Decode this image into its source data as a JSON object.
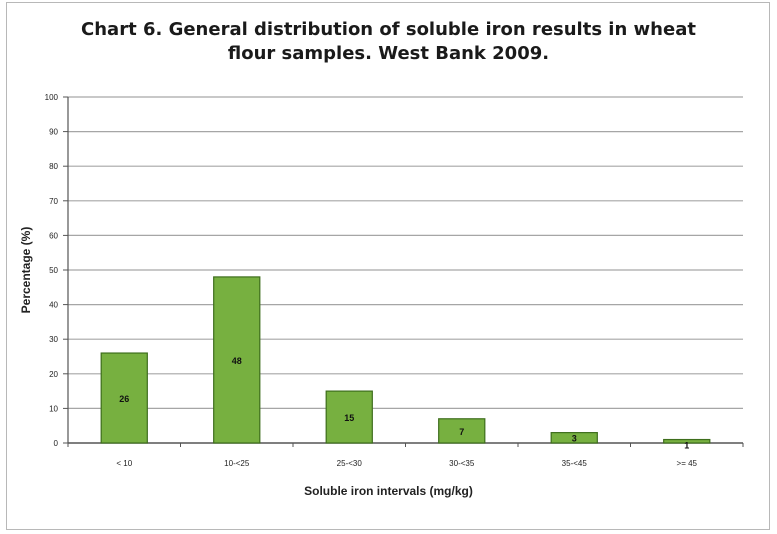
{
  "chart_data": {
    "type": "bar",
    "title_line1": "Chart 6. General distribution of soluble iron results in wheat",
    "title_line2": "flour samples.  West Bank 2009.",
    "xlabel": "Soluble iron intervals (mg/kg)",
    "ylabel": "Percentage (%)",
    "ylim": [
      0,
      100
    ],
    "yticks": [
      0,
      10,
      20,
      30,
      40,
      50,
      60,
      70,
      80,
      90,
      100
    ],
    "categories": [
      "< 10",
      "10-<25",
      "25-<30",
      "30-<35",
      "35-<45",
      ">= 45"
    ],
    "values": [
      26,
      48,
      15,
      7,
      3,
      1
    ],
    "data_labels": [
      "26",
      "48",
      "15",
      "7",
      "3",
      "1"
    ],
    "bar_color": "#77b040",
    "bar_edge_color": "#3e6e1c",
    "grid": true,
    "legend": "none"
  }
}
